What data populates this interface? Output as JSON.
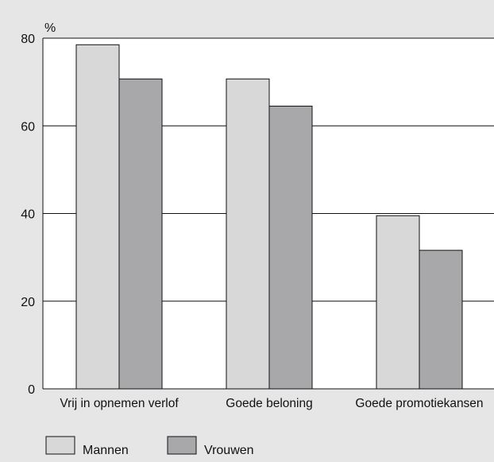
{
  "chart_data": {
    "type": "bar",
    "ylabel": "%",
    "categories": [
      "Vrij in opnemen verlof",
      "Goede beloning",
      "Goede promotiekansen"
    ],
    "series": [
      {
        "name": "Mannen",
        "values": [
          78.5,
          70.7,
          39.5
        ],
        "color": "#d8d8d8"
      },
      {
        "name": "Vrouwen",
        "values": [
          70.7,
          64.5,
          31.6
        ],
        "color": "#a8a8aa"
      }
    ],
    "ylim": [
      0,
      80
    ],
    "yticks": [
      0,
      20,
      40,
      60,
      80
    ],
    "grid": true,
    "legend": "bottom-left"
  }
}
